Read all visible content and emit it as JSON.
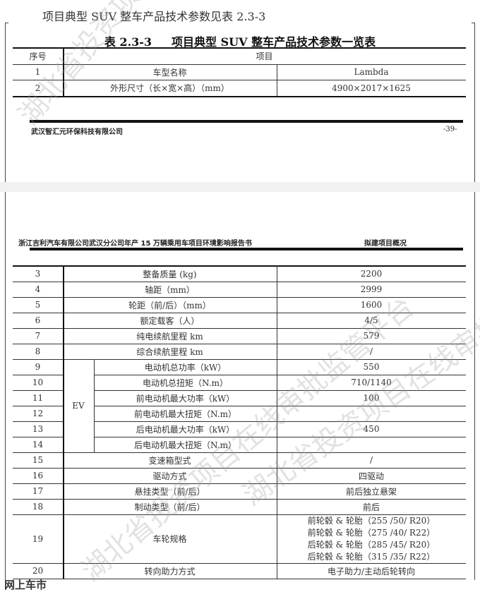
{
  "intro_text": "项目典型 SUV 整车产品技术参数见表 2.3-3",
  "caption": {
    "number": "表 2.3-3",
    "title": "项目典型 SUV 整车产品技术参数一览表"
  },
  "table1": {
    "headers": [
      "序号",
      "项目"
    ],
    "rows": [
      {
        "no": "1",
        "item": "车型名称",
        "value": "Lambda"
      },
      {
        "no": "2",
        "item": "外形尺寸（长×宽×高）（mm）",
        "value": "4900×2017×1625"
      }
    ]
  },
  "page1_footer": {
    "company": "武汉智汇元环保科技有限公司",
    "page": "-39-"
  },
  "page2_header": {
    "report_title": "浙江吉利汽车有限公司武汉分公司年产 15 万辆乘用车项目环境影响报告书",
    "section": "拟建项目概况"
  },
  "table2": {
    "ev_label": "EV",
    "rows": [
      {
        "no": "3",
        "item": "整备质量 (kg)",
        "value": "2200"
      },
      {
        "no": "4",
        "item": "轴距（mm）",
        "value": "2999"
      },
      {
        "no": "5",
        "item": "轮距（前/后）（mm）",
        "value": "1600"
      },
      {
        "no": "6",
        "item": "额定载客（人）",
        "value": "4/5"
      },
      {
        "no": "7",
        "item": "纯电续航里程 km",
        "value": "579"
      },
      {
        "no": "8",
        "item": "综合续航里程 km",
        "value": "/"
      },
      {
        "no": "9",
        "item": "电动机总功率（kW）",
        "value": "550",
        "ev": true
      },
      {
        "no": "10",
        "item": "电动机总扭矩（N.m）",
        "value": "710/1140",
        "ev": true
      },
      {
        "no": "11",
        "item": "前电动机最大功率（kW）",
        "value": "100",
        "ev": true
      },
      {
        "no": "12",
        "item": "前电动机最大扭矩（N.m）",
        "value": "",
        "ev": true
      },
      {
        "no": "13",
        "item": "后电动机最大功率（kW）",
        "value": "450",
        "ev": true
      },
      {
        "no": "14",
        "item": "后电动机最大扭矩（N.m）",
        "value": "",
        "ev": true
      },
      {
        "no": "15",
        "item": "变速箱型式",
        "value": "/"
      },
      {
        "no": "16",
        "item": "驱动方式",
        "value": "四驱动"
      },
      {
        "no": "17",
        "item": "悬挂类型（前/后）",
        "value": "前后独立悬架"
      },
      {
        "no": "18",
        "item": "制动类型（前/后）",
        "value": "前后"
      },
      {
        "no": "19",
        "item": "车轮规格",
        "values": [
          "前轮毂 & 轮胎（255 /50/ R20）",
          "前轮毂 & 轮胎（275 /40/ R22）",
          "后轮毂 & 轮胎（285 /45/ R20）",
          "后轮毂 & 轮胎（315 /35/ R22）"
        ]
      },
      {
        "no": "20",
        "item": "转向助力方式",
        "value": "电子助力/主动后轮转向"
      }
    ]
  },
  "watermark": "湖北省投资项目在线审批监管平台",
  "brand_logo": "网上车市"
}
